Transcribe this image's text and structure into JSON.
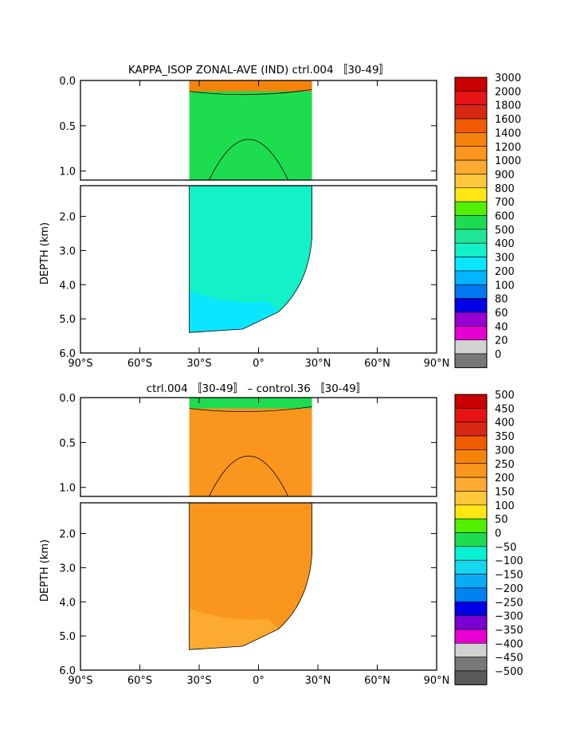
{
  "chart_data": [
    {
      "type": "heatmap",
      "title": "KAPPA_ISOP ZONAL-AVE (IND) ctrl.004 〚30-49〛",
      "ylabel": "DEPTH (km)",
      "xticks": [
        "90°S",
        "60°S",
        "30°S",
        "0°",
        "30°N",
        "60°N",
        "90°N"
      ],
      "xlim": [
        -90,
        90
      ],
      "yticks_upper": [
        "0.0",
        "0.5",
        "1.0"
      ],
      "yticks_lower": [
        "2.0",
        "3.0",
        "4.0",
        "5.0",
        "6.0"
      ],
      "ylim": [
        0,
        6
      ],
      "data_extent": {
        "lat": [
          -35,
          27
        ],
        "depth": [
          0,
          5.4
        ]
      },
      "colorbar": {
        "levels": [
          "3000",
          "2000",
          "1800",
          "1600",
          "1400",
          "1200",
          "1000",
          "900",
          "800",
          "700",
          "600",
          "500",
          "400",
          "300",
          "200",
          "100",
          "80",
          "60",
          "40",
          "20",
          "0"
        ],
        "colors": [
          "#c80000",
          "#e61414",
          "#d72814",
          "#f05a00",
          "#f5820a",
          "#fa961e",
          "#fcaa32",
          "#ffc83c",
          "#ffe614",
          "#50f000",
          "#1edc50",
          "#1ee696",
          "#14f0c8",
          "#0ae6ff",
          "#00b4ff",
          "#0078f0",
          "#0000e6",
          "#9600d2",
          "#e600d2",
          "#d2d2d2",
          "#787878"
        ]
      },
      "regions": {
        "surface": "#f5820a",
        "upper": "#1edc50",
        "deep": "#14f0c8",
        "bottom": "#0ae6ff"
      }
    },
    {
      "type": "heatmap",
      "title": "ctrl.004 〚30-49〛 – control.36 〚30-49〛",
      "ylabel": "DEPTH (km)",
      "xticks": [
        "90°S",
        "60°S",
        "30°S",
        "0°",
        "30°N",
        "60°N",
        "90°N"
      ],
      "xlim": [
        -90,
        90
      ],
      "yticks_upper": [
        "0.0",
        "0.5",
        "1.0"
      ],
      "yticks_lower": [
        "2.0",
        "3.0",
        "4.0",
        "5.0",
        "6.0"
      ],
      "ylim": [
        0,
        6
      ],
      "data_extent": {
        "lat": [
          -35,
          27
        ],
        "depth": [
          0,
          5.4
        ]
      },
      "colorbar": {
        "levels": [
          "500",
          "450",
          "400",
          "350",
          "300",
          "250",
          "200",
          "150",
          "100",
          "50",
          "0",
          "−50",
          "−100",
          "−150",
          "−200",
          "−250",
          "−300",
          "−350",
          "−400",
          "−450",
          "−500"
        ],
        "colors": [
          "#c80000",
          "#e61414",
          "#d72814",
          "#f05a00",
          "#f5820a",
          "#fa961e",
          "#fcaa32",
          "#ffc83c",
          "#ffe614",
          "#50f000",
          "#1edc50",
          "#0af0d2",
          "#14d7f0",
          "#0aaaf5",
          "#0082f0",
          "#0000e6",
          "#7800d2",
          "#e600d2",
          "#d2d2d2",
          "#787878",
          "#5a5a5a"
        ]
      },
      "regions": {
        "surface": "#1edc50",
        "upper": "#fa961e",
        "deep": "#fa961e",
        "bottom": "#fcaa32"
      }
    }
  ]
}
